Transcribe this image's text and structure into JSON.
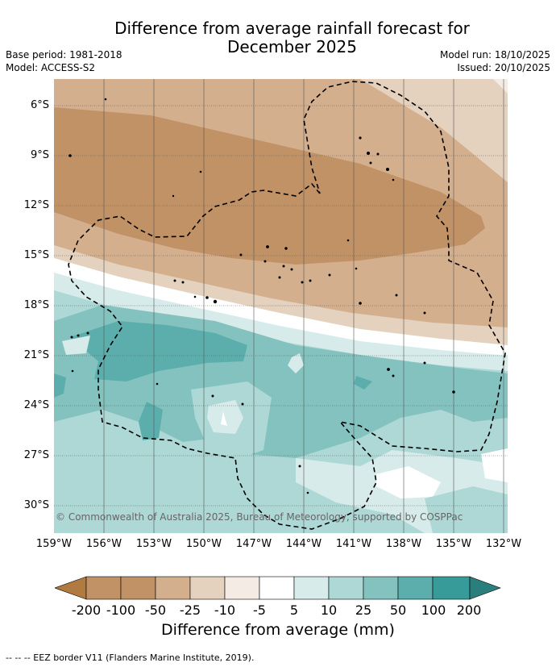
{
  "title": {
    "line1": "Difference from average rainfall forecast for",
    "line2": "December 2025"
  },
  "meta": {
    "base_period": "Base period: 1981-2018",
    "model": "Model: ACCESS-S2",
    "model_run": "Model run: 18/10/2025",
    "issued": "Issued: 20/10/2025"
  },
  "map": {
    "lat_labels": [
      "6°S",
      "9°S",
      "12°S",
      "15°S",
      "18°S",
      "21°S",
      "24°S",
      "27°S",
      "30°S"
    ],
    "lon_labels": [
      "159°W",
      "156°W",
      "153°W",
      "150°W",
      "147°W",
      "144°W",
      "141°W",
      "138°W",
      "135°W",
      "132°W"
    ],
    "copyright": "© Commonwealth of Australia 2025, Bureau of Meteorology, supported by COSPPac"
  },
  "colorbar": {
    "labels": [
      "-200",
      "-100",
      "-50",
      "-25",
      "-10",
      "-5",
      "5",
      "10",
      "25",
      "50",
      "100",
      "200"
    ],
    "colors": [
      "#b07a40",
      "#c09266",
      "#d3af8e",
      "#e4d1be",
      "#f4ebe4",
      "#ffffff",
      "#d7ebea",
      "#add8d5",
      "#84c2bf",
      "#5caeac",
      "#379b99",
      "#2a7f7c"
    ],
    "title": "Difference from average (mm)"
  },
  "legend": {
    "text": "--  --  -- EEZ border V11 (Flanders Marine Institute, 2019)."
  }
}
